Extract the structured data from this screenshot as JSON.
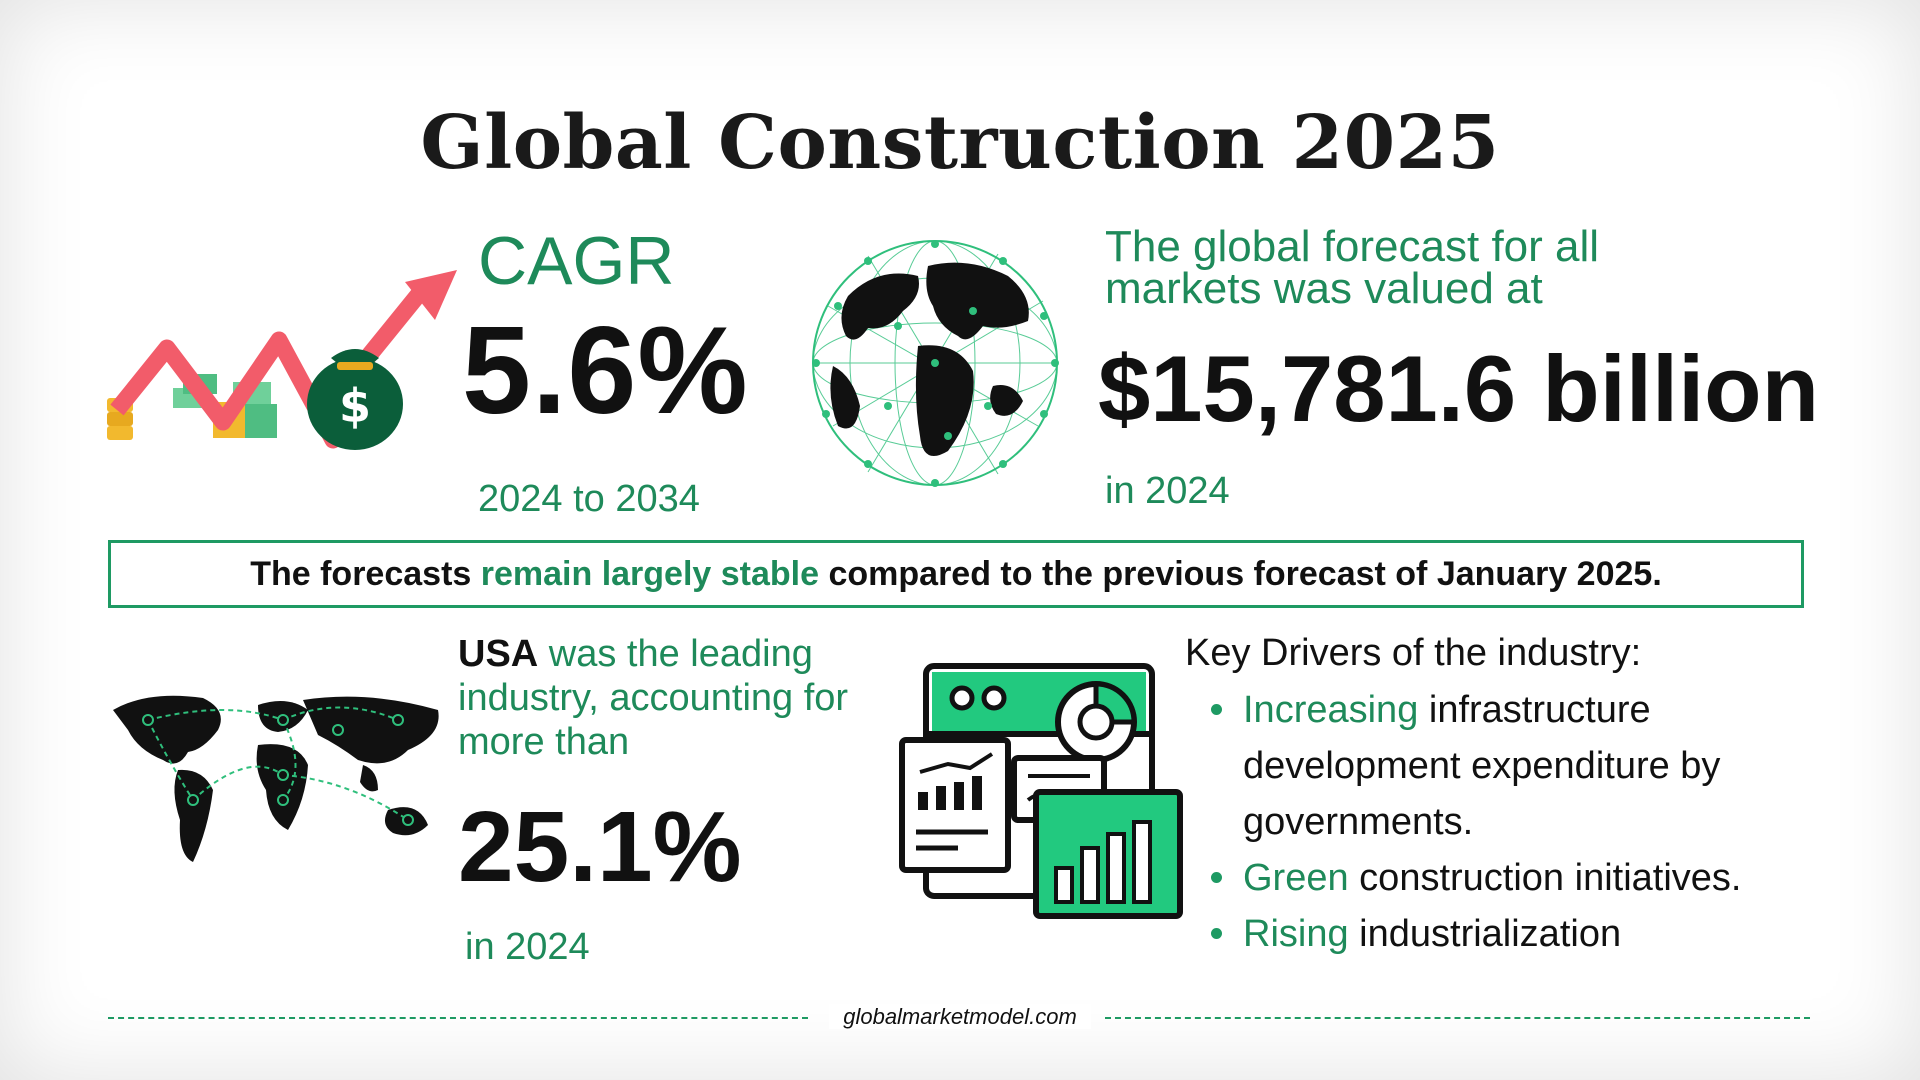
{
  "title": "Global Construction 2025",
  "cagr": {
    "label": "CAGR",
    "value": "5.6%",
    "period": "2024 to 2034"
  },
  "forecast": {
    "label": "The global forecast for all markets was valued at",
    "value": "$15,781.6 billion",
    "year": "in 2024"
  },
  "banner": {
    "prefix": "The forecasts ",
    "highlight": "remain largely stable",
    "suffix": " compared to the previous forecast of January 2025."
  },
  "usa": {
    "country": "USA",
    "text": " was the leading industry, accounting for more than",
    "value": "25.1%",
    "year": "in 2024"
  },
  "drivers": {
    "title": "Key Drivers of the industry:",
    "items": [
      {
        "highlight": "Increasing",
        "text": " infrastructure development expenditure by governments."
      },
      {
        "highlight": "Green",
        "text": " construction initiatives."
      },
      {
        "highlight": "Rising",
        "text": " industrialization"
      }
    ]
  },
  "footer": {
    "text": "globalmarketmodel.com"
  },
  "colors": {
    "accent": "#1e8a5a",
    "border": "#1e9a63",
    "bright": "#22c97f",
    "arrow": "#f25c6a"
  }
}
